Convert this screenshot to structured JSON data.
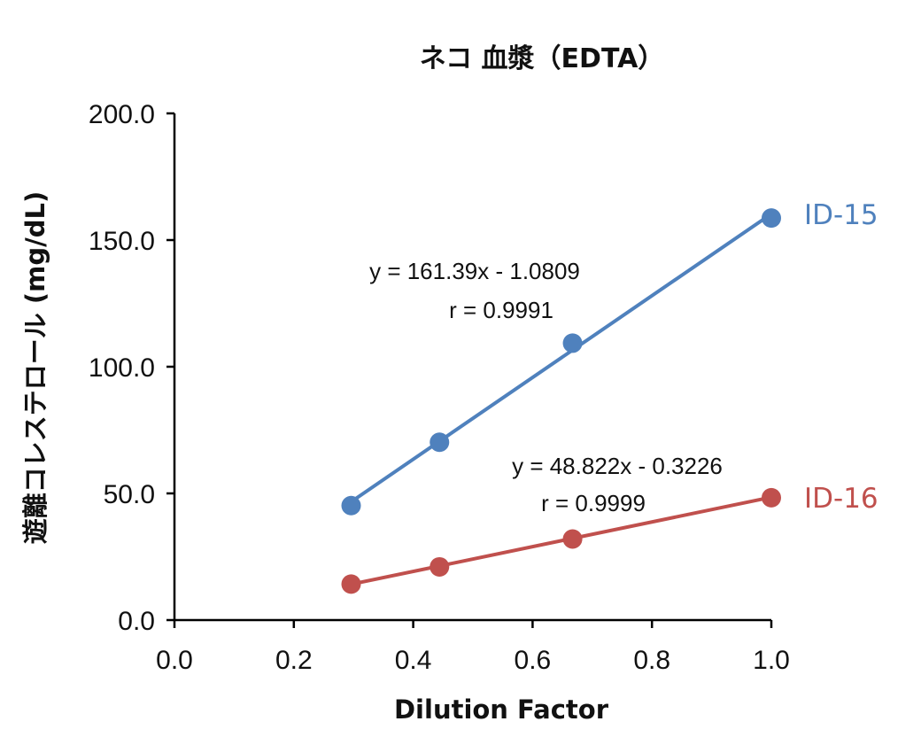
{
  "chart_data": {
    "type": "scatter",
    "title": "ネコ 血漿（EDTA）",
    "xlabel": "Dilution Factor",
    "ylabel": "遊離コレステロール (mg/dL)",
    "xlim": [
      0,
      1
    ],
    "ylim": [
      0,
      200
    ],
    "x_ticks": [
      0.0,
      0.2,
      0.4,
      0.6,
      0.8,
      1.0
    ],
    "x_tick_labels": [
      "0.0",
      "0.2",
      "0.4",
      "0.6",
      "0.8",
      "1.0"
    ],
    "y_ticks": [
      0,
      50,
      100,
      150,
      200
    ],
    "y_tick_labels": [
      "0.0",
      "50.0",
      "100.0",
      "150.0",
      "200.0"
    ],
    "grid": false,
    "legend": "none",
    "series": [
      {
        "name": "ID-15",
        "color": "#4f81bd",
        "x": [
          0.296,
          0.444,
          0.667,
          1.0
        ],
        "y": [
          45.2,
          70.2,
          109.3,
          158.7
        ],
        "trendline": {
          "slope": 161.39,
          "intercept": -1.0809
        },
        "equation": "y = 161.39x - 1.0809",
        "r": "r = 0.9991"
      },
      {
        "name": "ID-16",
        "color": "#c0504d",
        "x": [
          0.296,
          0.444,
          0.667,
          1.0
        ],
        "y": [
          14.2,
          21.0,
          32.0,
          48.3
        ],
        "trendline": {
          "slope": 48.822,
          "intercept": -0.3226
        },
        "equation": "y = 48.822x - 0.3226",
        "r": "r = 0.9999"
      }
    ]
  }
}
